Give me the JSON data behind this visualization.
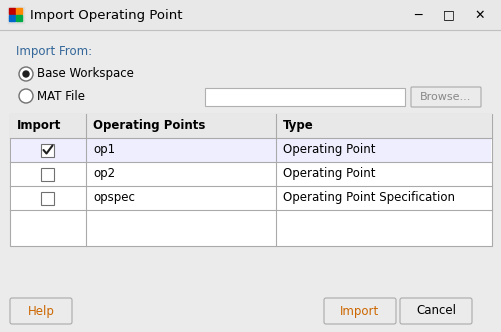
{
  "title": "Import Operating Point",
  "bg_color": "#f0f0f0",
  "import_from_label": "Import From:",
  "import_from_color": "#336699",
  "radio1_label": "Base Workspace",
  "radio2_label": "MAT File",
  "table_headers": [
    "Import",
    "Operating Points",
    "Type"
  ],
  "table_rows": [
    {
      "checked": true,
      "name": "op1",
      "type": "Operating Point"
    },
    {
      "checked": false,
      "name": "op2",
      "type": "Operating Point"
    },
    {
      "checked": false,
      "name": "opspec",
      "type": "Operating Point Specification"
    }
  ],
  "btn_help": "Help",
  "btn_import": "Import",
  "btn_cancel": "Cancel",
  "browse_label": "Browse...",
  "font_size": 8.5,
  "text_color": "#000000",
  "table_line_color": "#aaaaaa",
  "header_bg": "#e8e8e8",
  "row_bg_checked": "#eeeeff",
  "row_bg_normal": "#ffffff",
  "title_bar_bg": "#e8e8e8",
  "body_bg": "#ebebeb",
  "button_text_color": "#8B4513",
  "help_btn_color": "#0000cc"
}
